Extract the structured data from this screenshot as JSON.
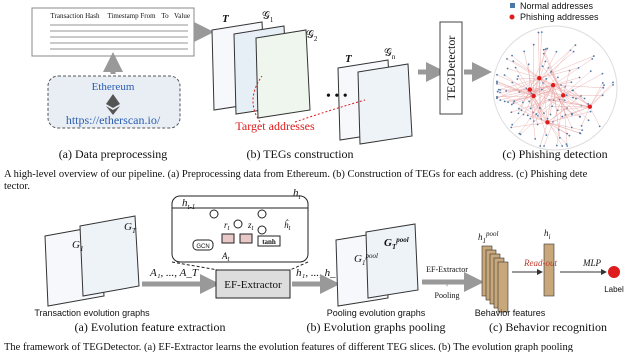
{
  "top": {
    "table_header": [
      "Transaction Hash",
      "Timestamp",
      "From",
      "To",
      "Value"
    ],
    "ethereum": "Ethereum",
    "url": "https://etherscan.io/",
    "T1": "T",
    "g1": [
      "𝒢",
      "1"
    ],
    "g2": [
      "𝒢",
      "2"
    ],
    "T2": "T",
    "gn": [
      "𝒢",
      "n"
    ],
    "target": "Target addresses",
    "detector": "TEGDetector",
    "legend": [
      "Normal addresses",
      "Phishing addresses"
    ],
    "captions": [
      "(a) Data preprocessing",
      "(b) TEGs construction",
      "(c) Phishing detection"
    ],
    "figure_caption": [
      "A high-level overview of our pipeline. (a) Preprocessing data from Ethereum. (b) Construction of TEGs for each address. (c) Phishing dete",
      "tector."
    ]
  },
  "bottom": {
    "h_prev": [
      "h",
      "t-1"
    ],
    "h_t": [
      "h",
      "t"
    ],
    "r_t": [
      "r",
      "t"
    ],
    "z_t": [
      "z",
      "t"
    ],
    "hhat_t": [
      "ĥ",
      "t"
    ],
    "tanh": "tanh",
    "gcn": "GCN",
    "A_t": [
      "A",
      "t"
    ],
    "G1": [
      "G",
      "1"
    ],
    "GT": [
      "G",
      "T"
    ],
    "A_seq": "A₁, ..., A_T",
    "extractor": "EF-Extractor",
    "h_seq": "h₁, ..., h_T",
    "G1pool": [
      "G",
      "1",
      "pool"
    ],
    "GTpool": [
      "G",
      "T",
      "pool"
    ],
    "pool_step": [
      "EF-Extractor",
      "+",
      "Pooling"
    ],
    "h1pool": [
      "h",
      "1",
      "pool"
    ],
    "readout": "Read-out",
    "h_i": [
      "h",
      "i"
    ],
    "mlp": "MLP",
    "label": "Label",
    "graph_titles": [
      "Transaction evolution graphs",
      "Pooling evolution graphs",
      "Behavior features"
    ],
    "captions": [
      "(a) Evolution feature extraction",
      "(b) Evolution graphs pooling",
      "(c) Behavior recognition"
    ],
    "figure_caption": "The framework of TEGDetector. (a) EF-Extractor learns the evolution features of different TEG slices. (b) The evolution graph pooling"
  }
}
